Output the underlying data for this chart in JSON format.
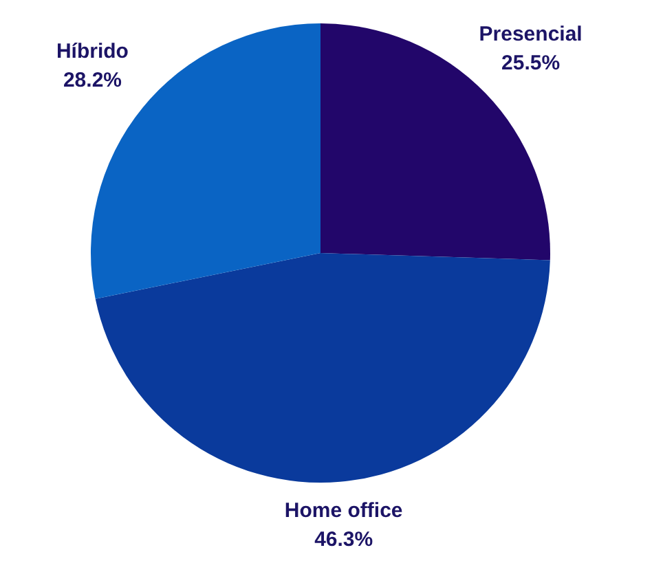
{
  "chart_data": {
    "type": "pie",
    "categories": [
      "Presencial",
      "Home office",
      "Híbrido"
    ],
    "values": [
      25.5,
      46.3,
      28.2
    ],
    "value_labels": [
      "25.5%",
      "46.3%",
      "28.2%"
    ],
    "colors": [
      "#22066a",
      "#0a3a9c",
      "#0a64c4"
    ],
    "legend": false
  }
}
